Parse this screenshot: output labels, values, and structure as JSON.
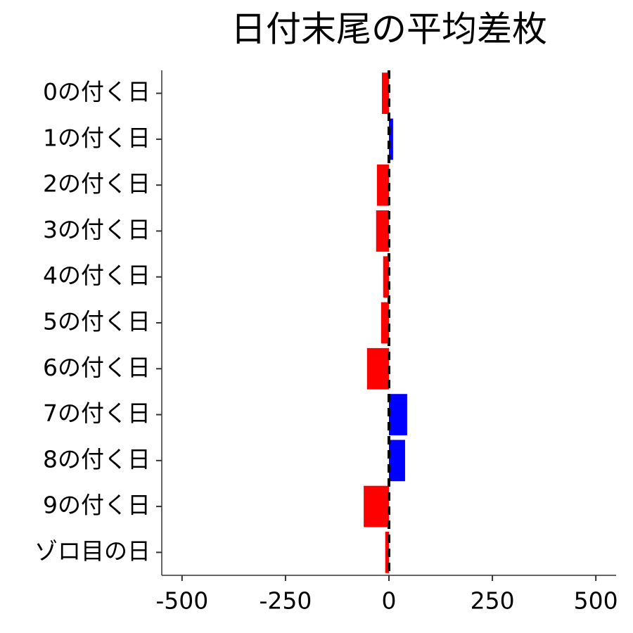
{
  "chart_data": {
    "type": "barh",
    "title": "日付末尾の平均差枚",
    "categories": [
      "0の付く日",
      "1の付く日",
      "2の付く日",
      "3の付く日",
      "4の付く日",
      "5の付く日",
      "6の付く日",
      "7の付く日",
      "8の付く日",
      "9の付く日",
      "ゾロ目の日"
    ],
    "values": [
      -17,
      10,
      -29,
      -31,
      -14,
      -19,
      -53,
      44,
      39,
      -61,
      -9
    ],
    "colors": [
      "#ff0000",
      "#0000ff",
      "#ff0000",
      "#ff0000",
      "#ff0000",
      "#ff0000",
      "#ff0000",
      "#0000ff",
      "#0000ff",
      "#ff0000",
      "#ff0000"
    ],
    "xlim": [
      -549,
      549
    ],
    "xticks": [
      -500,
      -250,
      0,
      250,
      500
    ],
    "vline": 0,
    "vline_style": "dashed"
  }
}
